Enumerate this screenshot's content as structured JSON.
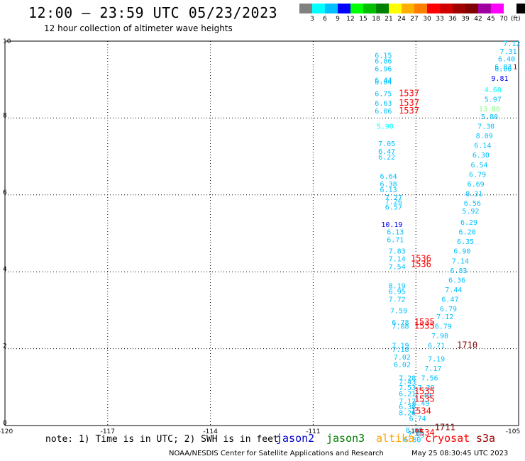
{
  "header": {
    "title": "12:00 – 23:59 UTC 05/23/2023",
    "subtitle": "12 hour collection of altimeter wave heights"
  },
  "colorbar": {
    "colors": [
      "#808080",
      "#00ffff",
      "#00bfff",
      "#0000ff",
      "#00ff00",
      "#00c000",
      "#008000",
      "#ffff00",
      "#ffb000",
      "#ff8000",
      "#ff0000",
      "#d00000",
      "#a00000",
      "#800000",
      "#a000a0",
      "#ff00ff",
      "#ffffff",
      "#000000"
    ],
    "labels": [
      "3",
      "6",
      "9",
      "12",
      "15",
      "18",
      "21",
      "24",
      "27",
      "30",
      "33",
      "36",
      "39",
      "42",
      "45",
      "70"
    ],
    "unit": "(ft)"
  },
  "chart_data": {
    "type": "scatter",
    "xlim": [
      -120,
      -105
    ],
    "ylim": [
      0,
      10
    ],
    "x_ticks": [
      "-120",
      "-117",
      "-114",
      "-111",
      "-108",
      "-105"
    ],
    "y_ticks": [
      "0",
      "2",
      "4",
      "6",
      "8",
      "10"
    ],
    "grid": true,
    "points": [
      {
        "x": -105.2,
        "y": 9.87,
        "label": "7.12",
        "color": "#00bfff"
      },
      {
        "x": -105.3,
        "y": 9.67,
        "label": "7.31",
        "color": "#00bfff"
      },
      {
        "x": -105.35,
        "y": 9.47,
        "label": "6.40",
        "color": "#00bfff"
      },
      {
        "x": -105.45,
        "y": 9.27,
        "label": "6.03",
        "color": "#00bfff"
      },
      {
        "x": -105.45,
        "y": 9.22,
        "label": "6.00",
        "color": "#00bfff"
      },
      {
        "x": -105.1,
        "y": 9.27,
        "label": "1",
        "color": "#800000"
      },
      {
        "x": -105.55,
        "y": 8.97,
        "label": "9.81",
        "color": "#0000ff"
      },
      {
        "x": -105.75,
        "y": 8.67,
        "label": "4.68",
        "color": "#00ffff"
      },
      {
        "x": -105.75,
        "y": 8.42,
        "label": "5.97",
        "color": "#00bfff"
      },
      {
        "x": -105.85,
        "y": 8.17,
        "label": "13.80",
        "color": "#80ff80"
      },
      {
        "x": -105.85,
        "y": 7.97,
        "label": "5.80",
        "color": "#00bfff"
      },
      {
        "x": -105.95,
        "y": 7.72,
        "label": "7.30",
        "color": "#00bfff"
      },
      {
        "x": -106.0,
        "y": 7.47,
        "label": "8.09",
        "color": "#00bfff"
      },
      {
        "x": -106.05,
        "y": 7.22,
        "label": "6.14",
        "color": "#00bfff"
      },
      {
        "x": -106.1,
        "y": 6.97,
        "label": "6.30",
        "color": "#00bfff"
      },
      {
        "x": -106.15,
        "y": 6.72,
        "label": "6.54",
        "color": "#00bfff"
      },
      {
        "x": -106.2,
        "y": 6.47,
        "label": "6.79",
        "color": "#00bfff"
      },
      {
        "x": -106.25,
        "y": 6.22,
        "label": "6.69",
        "color": "#00bfff"
      },
      {
        "x": -106.3,
        "y": 5.97,
        "label": "8.31",
        "color": "#00bfff"
      },
      {
        "x": -106.35,
        "y": 5.72,
        "label": "6.56",
        "color": "#00bfff"
      },
      {
        "x": -106.4,
        "y": 5.52,
        "label": "5.92",
        "color": "#00bfff"
      },
      {
        "x": -106.45,
        "y": 5.22,
        "label": "6.29",
        "color": "#00bfff"
      },
      {
        "x": -106.5,
        "y": 4.97,
        "label": "6.20",
        "color": "#00bfff"
      },
      {
        "x": -106.55,
        "y": 4.72,
        "label": "6.35",
        "color": "#00bfff"
      },
      {
        "x": -106.65,
        "y": 4.47,
        "label": "6.90",
        "color": "#00bfff"
      },
      {
        "x": -106.7,
        "y": 4.22,
        "label": "7.14",
        "color": "#00bfff"
      },
      {
        "x": -106.75,
        "y": 3.97,
        "label": "6.83",
        "color": "#00bfff"
      },
      {
        "x": -106.8,
        "y": 3.72,
        "label": "6.36",
        "color": "#00bfff"
      },
      {
        "x": -106.9,
        "y": 3.47,
        "label": "7.44",
        "color": "#00bfff"
      },
      {
        "x": -107.0,
        "y": 3.22,
        "label": "6.47",
        "color": "#00bfff"
      },
      {
        "x": -107.05,
        "y": 2.97,
        "label": "6.79",
        "color": "#00bfff"
      },
      {
        "x": -107.15,
        "y": 2.77,
        "label": "7.12",
        "color": "#00bfff"
      },
      {
        "x": -107.2,
        "y": 2.52,
        "label": "6.79",
        "color": "#00bfff"
      },
      {
        "x": -107.3,
        "y": 2.27,
        "label": "7.90",
        "color": "#00bfff"
      },
      {
        "x": -107.4,
        "y": 2.02,
        "label": "6.71",
        "color": "#00bfff"
      },
      {
        "x": -106.5,
        "y": 2.02,
        "label": "1710",
        "color": "#800000"
      },
      {
        "x": -107.4,
        "y": 1.67,
        "label": "7.19",
        "color": "#00bfff"
      },
      {
        "x": -107.5,
        "y": 1.42,
        "label": "7.17",
        "color": "#00bfff"
      },
      {
        "x": -107.6,
        "y": 1.17,
        "label": "7.56",
        "color": "#00bfff"
      },
      {
        "x": -107.7,
        "y": 0.92,
        "label": "7.39",
        "color": "#00bfff"
      },
      {
        "x": -107.8,
        "y": 0.72,
        "label": "7.40",
        "color": "#00bfff"
      },
      {
        "x": -107.75,
        "y": 0.82,
        "label": "1535",
        "color": "#ff0000"
      },
      {
        "x": -107.75,
        "y": 0.62,
        "label": "1535",
        "color": "#ff0000"
      },
      {
        "x": -107.85,
        "y": 0.52,
        "label": "8.49",
        "color": "#00bfff"
      },
      {
        "x": -107.85,
        "y": 0.3,
        "label": "1534",
        "color": "#ff0000"
      },
      {
        "x": -107.95,
        "y": 0.12,
        "label": "6.74",
        "color": "#00bfff"
      },
      {
        "x": -108.05,
        "y": -0.18,
        "label": "8.88",
        "color": "#00bfff"
      },
      {
        "x": -107.15,
        "y": -0.12,
        "label": "1711",
        "color": "#800000"
      },
      {
        "x": -108.1,
        "y": -0.43,
        "label": "6.80",
        "color": "#00bfff"
      },
      {
        "x": -107.75,
        "y": -0.26,
        "label": "1534",
        "color": "#ff0000"
      },
      {
        "x": -108.0,
        "y": -0.31,
        "label": "7.99",
        "color": "#00bfff"
      },
      {
        "x": -108.95,
        "y": 9.57,
        "label": "6.15",
        "color": "#00bfff"
      },
      {
        "x": -108.95,
        "y": 9.42,
        "label": "6.86",
        "color": "#00bfff"
      },
      {
        "x": -108.95,
        "y": 9.22,
        "label": "6.96",
        "color": "#00bfff"
      },
      {
        "x": -108.95,
        "y": 8.92,
        "label": "6.44",
        "color": "#00bfff"
      },
      {
        "x": -108.95,
        "y": 8.87,
        "label": "6.04",
        "color": "#00bfff"
      },
      {
        "x": -108.95,
        "y": 8.57,
        "label": "6.75",
        "color": "#00bfff"
      },
      {
        "x": -108.95,
        "y": 8.32,
        "label": "6.63",
        "color": "#00bfff"
      },
      {
        "x": -108.95,
        "y": 8.12,
        "label": "6.06",
        "color": "#00bfff"
      },
      {
        "x": -108.2,
        "y": 8.57,
        "label": "1537",
        "color": "#ff0000"
      },
      {
        "x": -108.2,
        "y": 8.32,
        "label": "1537",
        "color": "#ff0000"
      },
      {
        "x": -108.2,
        "y": 8.12,
        "label": "1537",
        "color": "#ff0000"
      },
      {
        "x": -108.9,
        "y": 7.72,
        "label": "5.90",
        "color": "#00ffff"
      },
      {
        "x": -108.85,
        "y": 7.27,
        "label": "7.05",
        "color": "#00bfff"
      },
      {
        "x": -108.85,
        "y": 7.07,
        "label": "6.47",
        "color": "#00bfff"
      },
      {
        "x": -108.85,
        "y": 6.92,
        "label": "6.22",
        "color": "#00bfff"
      },
      {
        "x": -108.8,
        "y": 6.42,
        "label": "6.64",
        "color": "#00bfff"
      },
      {
        "x": -108.8,
        "y": 6.22,
        "label": "6.38",
        "color": "#00bfff"
      },
      {
        "x": -108.8,
        "y": 6.07,
        "label": "6.13",
        "color": "#00bfff"
      },
      {
        "x": -108.65,
        "y": 5.87,
        "label": "7.27",
        "color": "#00bfff"
      },
      {
        "x": -108.65,
        "y": 5.77,
        "label": "7.26",
        "color": "#00bfff"
      },
      {
        "x": -108.65,
        "y": 5.62,
        "label": "6.57",
        "color": "#00bfff"
      },
      {
        "x": -108.7,
        "y": 5.17,
        "label": "10.19",
        "color": "#0000ff"
      },
      {
        "x": -108.6,
        "y": 4.97,
        "label": "6.13",
        "color": "#00bfff"
      },
      {
        "x": -108.6,
        "y": 4.77,
        "label": "6.71",
        "color": "#00bfff"
      },
      {
        "x": -108.55,
        "y": 4.47,
        "label": "7.83",
        "color": "#00bfff"
      },
      {
        "x": -108.55,
        "y": 4.27,
        "label": "7.14",
        "color": "#00bfff"
      },
      {
        "x": -108.55,
        "y": 4.07,
        "label": "7.54",
        "color": "#00bfff"
      },
      {
        "x": -107.85,
        "y": 4.27,
        "label": "1536",
        "color": "#ff0000"
      },
      {
        "x": -107.85,
        "y": 4.12,
        "label": "1536",
        "color": "#ff0000"
      },
      {
        "x": -108.55,
        "y": 3.57,
        "label": "8.19",
        "color": "#00bfff"
      },
      {
        "x": -108.55,
        "y": 3.42,
        "label": "6.95",
        "color": "#00bfff"
      },
      {
        "x": -108.55,
        "y": 3.22,
        "label": "7.72",
        "color": "#00bfff"
      },
      {
        "x": -108.5,
        "y": 2.92,
        "label": "7.59",
        "color": "#00bfff"
      },
      {
        "x": -108.45,
        "y": 2.62,
        "label": "6.78",
        "color": "#00bfff"
      },
      {
        "x": -108.45,
        "y": 2.52,
        "label": "7.08",
        "color": "#00bfff"
      },
      {
        "x": -107.75,
        "y": 2.62,
        "label": "1535",
        "color": "#ff0000"
      },
      {
        "x": -107.75,
        "y": 2.52,
        "label": "1535",
        "color": "#ff0000"
      },
      {
        "x": -108.45,
        "y": 2.02,
        "label": "7.19",
        "color": "#00bfff"
      },
      {
        "x": -108.45,
        "y": 1.92,
        "label": "7.18",
        "color": "#00bfff"
      },
      {
        "x": -108.4,
        "y": 1.72,
        "label": "7.02",
        "color": "#00bfff"
      },
      {
        "x": -108.4,
        "y": 1.52,
        "label": "6.02",
        "color": "#00bfff"
      },
      {
        "x": -108.25,
        "y": 1.17,
        "label": "7.28",
        "color": "#00bfff"
      },
      {
        "x": -108.25,
        "y": 1.07,
        "label": "7.43",
        "color": "#00bfff"
      },
      {
        "x": -108.25,
        "y": 0.92,
        "label": "7.53",
        "color": "#00bfff"
      },
      {
        "x": -108.25,
        "y": 0.77,
        "label": "6.21",
        "color": "#00bfff"
      },
      {
        "x": -108.25,
        "y": 0.57,
        "label": "7.12",
        "color": "#00bfff"
      },
      {
        "x": -108.25,
        "y": 0.42,
        "label": "6.38",
        "color": "#00bfff"
      },
      {
        "x": -108.25,
        "y": 0.27,
        "label": "8.26",
        "color": "#00bfff"
      }
    ]
  },
  "footer": {
    "note": "note: 1) Time is in UTC; 2) SWH is in feet",
    "legend": [
      {
        "label": "jason2",
        "color": "#0000cc"
      },
      {
        "label": "jason3",
        "color": "#008000"
      },
      {
        "label": "altika",
        "color": "#ffa000"
      },
      {
        "label": "cryosat",
        "color": "#ff0000"
      },
      {
        "label": "s3a",
        "color": "#a00000"
      }
    ],
    "credit": "NOAA/NESDIS Center for Satellite Applications and Research",
    "timestamp": "May 25 08:30:45 UTC 2023"
  }
}
